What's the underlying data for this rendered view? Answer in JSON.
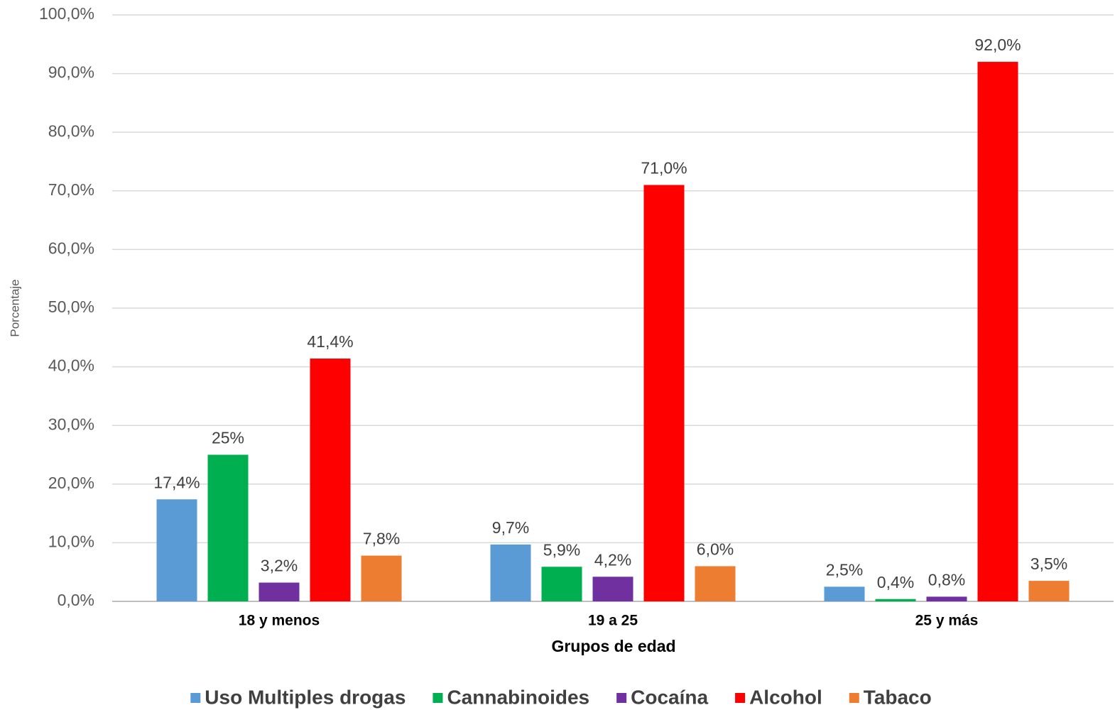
{
  "chart_data": {
    "type": "bar",
    "x_label": "Grupos de edad",
    "y_label": "Porcentaje",
    "categories": [
      "18 y menos",
      "19 a 25",
      "25 y más"
    ],
    "series": [
      {
        "name": "Uso Multiples drogas",
        "color": "#5b9bd5",
        "values": [
          17.4,
          9.7,
          2.5
        ],
        "value_labels": [
          "17,4%",
          "9,7%",
          "2,5%"
        ]
      },
      {
        "name": "Cannabinoides",
        "color": "#00b050",
        "values": [
          25,
          5.9,
          0.4
        ],
        "value_labels": [
          "25%",
          "5,9%",
          "0,4%"
        ]
      },
      {
        "name": "Cocaína",
        "color": "#7030a0",
        "values": [
          3.2,
          4.2,
          0.8
        ],
        "value_labels": [
          "3,2%",
          "4,2%",
          "0,8%"
        ]
      },
      {
        "name": "Alcohol",
        "color": "#ff0000",
        "values": [
          41.4,
          71.0,
          92.0
        ],
        "value_labels": [
          "41,4%",
          "71,0%",
          "92,0%"
        ]
      },
      {
        "name": "Tabaco",
        "color": "#ed7d31",
        "values": [
          7.8,
          6.0,
          3.5
        ],
        "value_labels": [
          "7,8%",
          "6,0%",
          "3,5%"
        ]
      }
    ],
    "ylim": [
      0,
      100
    ],
    "yticks": [
      {
        "value": 0,
        "label": "0,0%"
      },
      {
        "value": 10,
        "label": "10,0%"
      },
      {
        "value": 20,
        "label": "20,0%"
      },
      {
        "value": 30,
        "label": "30,0%"
      },
      {
        "value": 40,
        "label": "40,0%"
      },
      {
        "value": 50,
        "label": "50,0%"
      },
      {
        "value": 60,
        "label": "60,0%"
      },
      {
        "value": 70,
        "label": "70,0%"
      },
      {
        "value": 80,
        "label": "80,0%"
      },
      {
        "value": 90,
        "label": "90,0%"
      },
      {
        "value": 100,
        "label": "100,0%"
      }
    ],
    "grid": true,
    "legend": "bottom"
  }
}
